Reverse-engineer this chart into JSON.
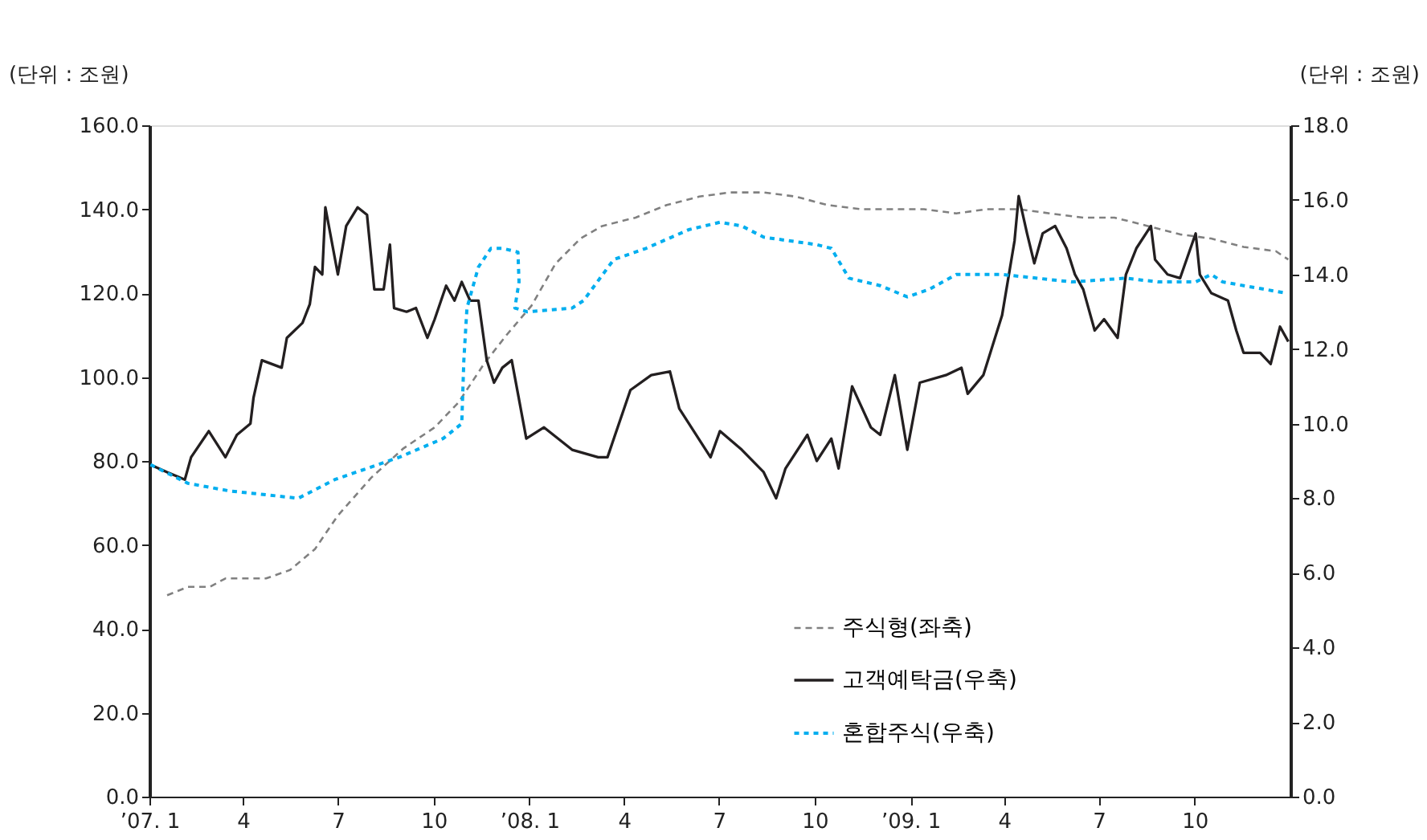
{
  "chart_data": {
    "type": "line",
    "ylabel": "(단위 : 조원)",
    "y2label": "(단위 : 조원)",
    "xlim": [
      "2007-01-01",
      "2010-01-01"
    ],
    "xticks": [
      {
        "value": "2007-01",
        "label": "’07. 1"
      },
      {
        "value": "2007-04",
        "label": "4"
      },
      {
        "value": "2007-07",
        "label": "7"
      },
      {
        "value": "2007-10",
        "label": "10"
      },
      {
        "value": "2008-01",
        "label": "’08. 1"
      },
      {
        "value": "2008-04",
        "label": "4"
      },
      {
        "value": "2008-07",
        "label": "7"
      },
      {
        "value": "2008-10",
        "label": "10"
      },
      {
        "value": "2009-01",
        "label": "’09. 1"
      },
      {
        "value": "2009-04",
        "label": "4"
      },
      {
        "value": "2009-07",
        "label": "7"
      },
      {
        "value": "2009-10",
        "label": "10"
      }
    ],
    "ylim": [
      0,
      160
    ],
    "yticks": [
      {
        "value": 0,
        "label": "0.0"
      },
      {
        "value": 20,
        "label": "20.0"
      },
      {
        "value": 40,
        "label": "40.0"
      },
      {
        "value": 60,
        "label": "60.0"
      },
      {
        "value": 80,
        "label": "80.0"
      },
      {
        "value": 100,
        "label": "100.0"
      },
      {
        "value": 120,
        "label": "120.0"
      },
      {
        "value": 140,
        "label": "140.0"
      },
      {
        "value": 160,
        "label": "160.0"
      }
    ],
    "y2lim": [
      0,
      18
    ],
    "y2ticks": [
      {
        "value": 0,
        "label": "0.0"
      },
      {
        "value": 2,
        "label": "2.0"
      },
      {
        "value": 4,
        "label": "4.0"
      },
      {
        "value": 6,
        "label": "6.0"
      },
      {
        "value": 8,
        "label": "8.0"
      },
      {
        "value": 10,
        "label": "10.0"
      },
      {
        "value": 12,
        "label": "12.0"
      },
      {
        "value": 14,
        "label": "14.0"
      },
      {
        "value": 16,
        "label": "16.0"
      },
      {
        "value": 18,
        "label": "18.0"
      }
    ],
    "grid": false,
    "legend": "bottom right",
    "marker": "none",
    "series": [
      {
        "name": "주식형(좌축)",
        "color": "#808080",
        "line_style": "dashed",
        "x": [
          "2007-01-18",
          "2007-02-07",
          "2007-02-28",
          "2007-03-15",
          "2007-04-23",
          "2007-05-16",
          "2007-06-09",
          "2007-07-01",
          "2007-08-02",
          "2007-09-02",
          "2007-10-02",
          "2007-10-25",
          "2007-11-18",
          "2007-12-10",
          "2008-01-03",
          "2008-01-26",
          "2008-02-19",
          "2008-03-11",
          "2008-04-12",
          "2008-05-12",
          "2008-06-12",
          "2008-07-12",
          "2008-08-13",
          "2008-09-13",
          "2008-10-13",
          "2008-11-14",
          "2008-12-14",
          "2009-01-14",
          "2009-02-14",
          "2009-03-15",
          "2009-04-15",
          "2009-05-15",
          "2009-06-16",
          "2009-07-16",
          "2009-08-17",
          "2009-09-17",
          "2009-10-17",
          "2009-11-17",
          "2009-12-18",
          "2009-12-30"
        ],
        "values": [
          48,
          50,
          50,
          52,
          52,
          54,
          59,
          67,
          76,
          83,
          88,
          94,
          103,
          110,
          117,
          127,
          133,
          136,
          138,
          141,
          143,
          144,
          144,
          143,
          141,
          140,
          140,
          140,
          139,
          140,
          140,
          139,
          138,
          138,
          136,
          134,
          133,
          131,
          130,
          128
        ]
      },
      {
        "name": "고객예탁금(우축)",
        "color": "#231f20",
        "line_style": "solid",
        "axis": "y2",
        "x": [
          "2007-01-02",
          "2007-01-18",
          "2007-02-04",
          "2007-02-10",
          "2007-02-27",
          "2007-03-15",
          "2007-03-26",
          "2007-04-08",
          "2007-04-11",
          "2007-04-19",
          "2007-05-08",
          "2007-05-13",
          "2007-05-28",
          "2007-06-04",
          "2007-06-09",
          "2007-06-16",
          "2007-06-19",
          "2007-07-01",
          "2007-07-09",
          "2007-07-20",
          "2007-07-29",
          "2007-08-05",
          "2007-08-14",
          "2007-08-20",
          "2007-08-24",
          "2007-09-05",
          "2007-09-14",
          "2007-09-25",
          "2007-10-02",
          "2007-10-13",
          "2007-10-21",
          "2007-10-28",
          "2007-11-05",
          "2007-11-13",
          "2007-11-21",
          "2007-11-28",
          "2007-12-06",
          "2007-12-15",
          "2007-12-21",
          "2007-12-29",
          "2008-01-15",
          "2008-02-11",
          "2008-03-07",
          "2008-03-16",
          "2008-04-07",
          "2008-04-27",
          "2008-05-15",
          "2008-05-24",
          "2008-06-23",
          "2008-07-02",
          "2008-07-23",
          "2008-08-13",
          "2008-08-25",
          "2008-09-03",
          "2008-09-24",
          "2008-10-03",
          "2008-10-17",
          "2008-10-24",
          "2008-11-06",
          "2008-11-24",
          "2008-12-03",
          "2008-12-17",
          "2008-12-29",
          "2009-01-10",
          "2009-02-04",
          "2009-02-19",
          "2009-02-25",
          "2009-03-12",
          "2009-03-30",
          "2009-04-11",
          "2009-04-15",
          "2009-04-23",
          "2009-04-30",
          "2009-05-08",
          "2009-05-20",
          "2009-05-31",
          "2009-06-08",
          "2009-06-16",
          "2009-06-27",
          "2009-07-06",
          "2009-07-19",
          "2009-07-27",
          "2009-08-06",
          "2009-08-20",
          "2009-08-24",
          "2009-09-05",
          "2009-09-17",
          "2009-10-02",
          "2009-10-06",
          "2009-10-17",
          "2009-11-02",
          "2009-11-10",
          "2009-11-17",
          "2009-12-03",
          "2009-12-13",
          "2009-12-22",
          "2009-12-30"
        ],
        "values": [
          8.9,
          8.7,
          8.5,
          9.1,
          9.8,
          9.1,
          9.7,
          10.0,
          10.7,
          11.7,
          11.5,
          12.3,
          12.7,
          13.2,
          14.2,
          14.0,
          15.8,
          14.0,
          15.3,
          15.8,
          15.6,
          13.6,
          13.6,
          14.8,
          13.1,
          13.0,
          13.1,
          12.3,
          12.8,
          13.7,
          13.3,
          13.8,
          13.3,
          13.3,
          11.7,
          11.1,
          11.5,
          11.7,
          10.8,
          9.6,
          9.9,
          9.3,
          9.1,
          9.1,
          10.9,
          11.3,
          11.4,
          10.4,
          9.1,
          9.8,
          9.3,
          8.7,
          8.0,
          8.8,
          9.7,
          9.0,
          9.6,
          8.8,
          11.0,
          9.9,
          9.7,
          11.3,
          9.3,
          11.1,
          11.3,
          11.5,
          10.8,
          11.3,
          12.9,
          14.9,
          16.1,
          15.1,
          14.3,
          15.1,
          15.3,
          14.7,
          14.0,
          13.6,
          12.5,
          12.8,
          12.3,
          14.0,
          14.7,
          15.3,
          14.4,
          14.0,
          13.9,
          15.1,
          14.0,
          13.5,
          13.3,
          12.5,
          11.9,
          11.9,
          11.6,
          12.6,
          12.2
        ]
      },
      {
        "name": "혼합주식(우축)",
        "color": "#00aeef",
        "line_style": "dotted",
        "axis": "y2",
        "x": [
          "2007-01-02",
          "2007-02-07",
          "2007-03-18",
          "2007-05-24",
          "2007-06-28",
          "2007-08-29",
          "2007-10-10",
          "2007-10-28",
          "2007-10-30",
          "2007-11-02",
          "2007-11-13",
          "2007-11-25",
          "2007-12-06",
          "2007-12-21",
          "2007-12-22",
          "2007-12-18",
          "2007-12-30",
          "2008-02-11",
          "2008-02-22",
          "2008-03-22",
          "2008-04-22",
          "2008-06-02",
          "2008-07-02",
          "2008-07-23",
          "2008-08-13",
          "2008-10-03",
          "2008-10-17",
          "2008-11-03",
          "2008-12-03",
          "2008-12-29",
          "2009-01-19",
          "2009-02-14",
          "2009-03-30",
          "2009-06-05",
          "2009-07-27",
          "2009-08-27",
          "2009-10-02",
          "2009-10-17",
          "2009-10-28",
          "2009-12-28"
        ],
        "values": [
          8.9,
          8.4,
          8.2,
          8.0,
          8.5,
          9.1,
          9.6,
          10.0,
          11.7,
          13.1,
          14.2,
          14.7,
          14.7,
          14.6,
          13.8,
          13.1,
          13.0,
          13.1,
          13.3,
          14.4,
          14.7,
          15.2,
          15.4,
          15.3,
          15.0,
          14.8,
          14.7,
          13.9,
          13.7,
          13.4,
          13.6,
          14.0,
          14.0,
          13.8,
          13.9,
          13.8,
          13.8,
          14.0,
          13.8,
          13.5
        ]
      }
    ]
  }
}
